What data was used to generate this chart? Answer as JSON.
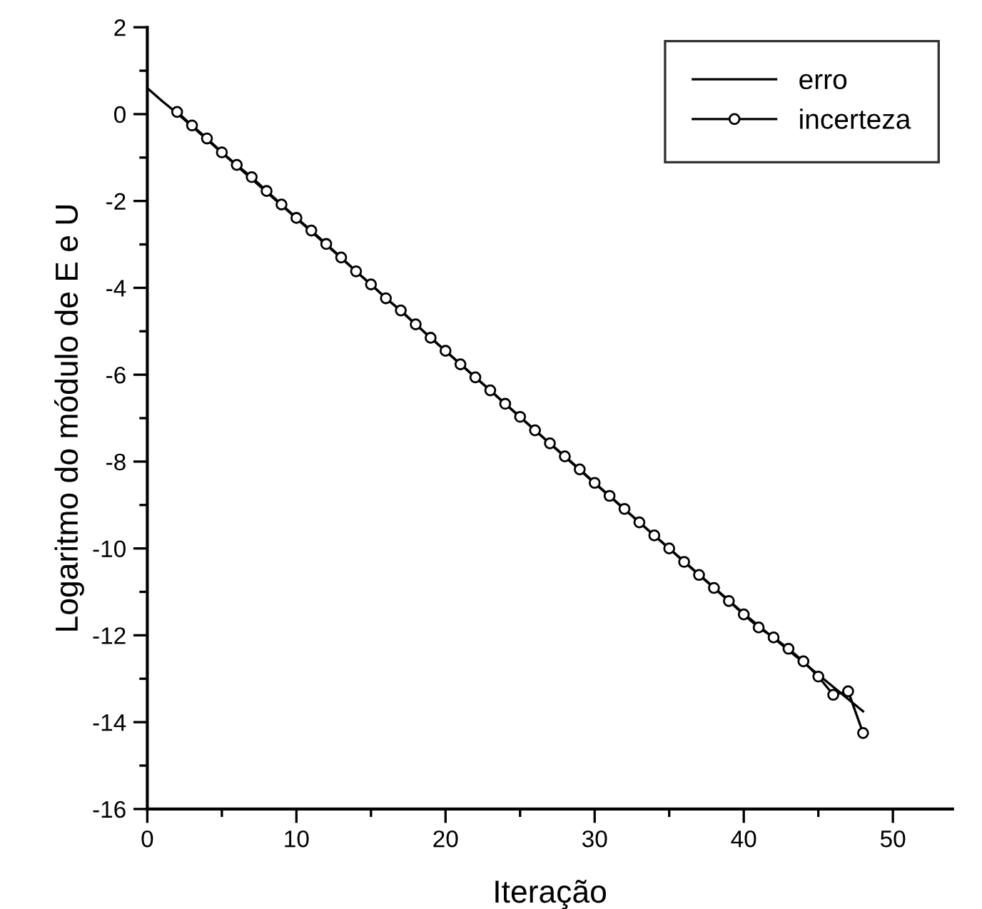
{
  "chart_data": {
    "type": "line",
    "xlabel": "Iteração",
    "ylabel": "Logaritmo do módulo de E e U",
    "xlim": [
      0,
      54
    ],
    "xticks": [
      0,
      10,
      20,
      30,
      40,
      50
    ],
    "ylim": [
      -16,
      2
    ],
    "yticks": [
      -16,
      -14,
      -12,
      -10,
      -8,
      -6,
      -4,
      -2,
      0,
      2
    ],
    "grid": false,
    "legend": "top right",
    "series": [
      {
        "name": "erro",
        "color": "#000000",
        "marker": "none",
        "x": [
          0,
          1,
          2,
          10,
          20,
          30,
          40,
          48
        ],
        "values": [
          0.6,
          0.3,
          0.02,
          -2.4,
          -5.45,
          -8.5,
          -11.5,
          -13.75
        ]
      },
      {
        "name": "incerteza",
        "color": "#000000",
        "marker": "circle",
        "x": [
          2,
          3,
          4,
          5,
          6,
          7,
          8,
          9,
          10,
          11,
          12,
          13,
          14,
          15,
          16,
          17,
          18,
          19,
          20,
          21,
          22,
          23,
          24,
          25,
          26,
          27,
          28,
          29,
          30,
          31,
          32,
          33,
          34,
          35,
          36,
          37,
          38,
          39,
          40,
          41,
          42,
          43,
          44,
          45,
          46,
          47,
          48
        ],
        "values": [
          0.05,
          -0.26,
          -0.56,
          -0.88,
          -1.17,
          -1.45,
          -1.77,
          -2.08,
          -2.39,
          -2.68,
          -2.99,
          -3.3,
          -3.62,
          -3.92,
          -4.24,
          -4.52,
          -4.84,
          -5.15,
          -5.45,
          -5.76,
          -6.06,
          -6.36,
          -6.67,
          -6.97,
          -7.28,
          -7.58,
          -7.88,
          -8.18,
          -8.49,
          -8.79,
          -9.09,
          -9.4,
          -9.7,
          -10.0,
          -10.31,
          -10.61,
          -10.91,
          -11.21,
          -11.52,
          -11.82,
          -12.05,
          -12.31,
          -12.6,
          -12.95,
          -13.37,
          -13.29,
          -14.25
        ]
      }
    ]
  }
}
